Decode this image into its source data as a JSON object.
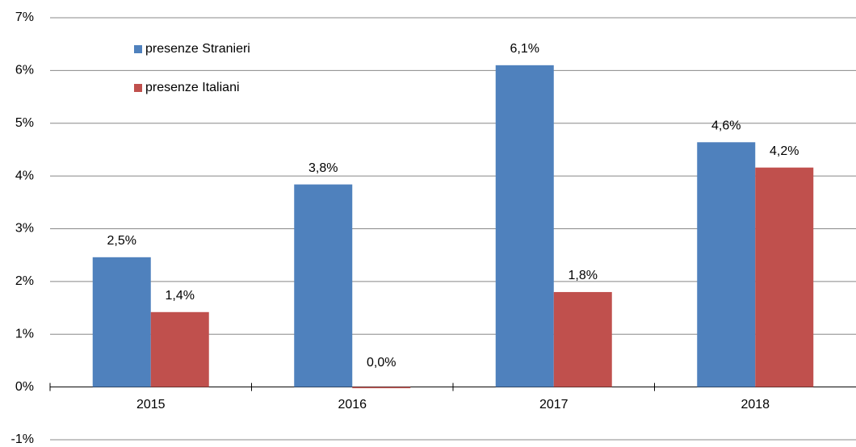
{
  "chart_data": {
    "type": "bar",
    "categories": [
      "2015",
      "2016",
      "2017",
      "2018"
    ],
    "series": [
      {
        "name": "presenze Stranieri",
        "color": "#4f81bd",
        "values": [
          2.46,
          3.84,
          6.1,
          4.64
        ],
        "value_labels": [
          "2,5%",
          "3,8%",
          "6,1%",
          "4,6%"
        ]
      },
      {
        "name": "presenze Italiani",
        "color": "#c0504d",
        "values": [
          1.42,
          0,
          1.8,
          4.16
        ],
        "value_labels": [
          "1,4%",
          "0,0%",
          "1,8%",
          "4,2%"
        ]
      }
    ],
    "ylim": [
      -1,
      7
    ],
    "yticks": [
      {
        "value": -1,
        "label": "-1%"
      },
      {
        "value": 0,
        "label": "0%"
      },
      {
        "value": 1,
        "label": "1%"
      },
      {
        "value": 2,
        "label": "2%"
      },
      {
        "value": 3,
        "label": "3%"
      },
      {
        "value": 4,
        "label": "4%"
      },
      {
        "value": 5,
        "label": "5%"
      },
      {
        "value": 6,
        "label": "6%"
      },
      {
        "value": 7,
        "label": "7%"
      }
    ],
    "grid": true,
    "legend": "upper left"
  }
}
